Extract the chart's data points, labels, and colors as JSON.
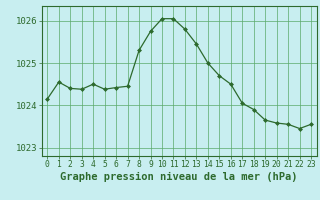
{
  "x": [
    0,
    1,
    2,
    3,
    4,
    5,
    6,
    7,
    8,
    9,
    10,
    11,
    12,
    13,
    14,
    15,
    16,
    17,
    18,
    19,
    20,
    21,
    22,
    23
  ],
  "y": [
    1024.15,
    1024.55,
    1024.4,
    1024.38,
    1024.5,
    1024.38,
    1024.42,
    1024.45,
    1025.3,
    1025.75,
    1026.05,
    1026.05,
    1025.8,
    1025.45,
    1025.0,
    1024.7,
    1024.5,
    1024.05,
    1023.9,
    1023.65,
    1023.58,
    1023.55,
    1023.45,
    1023.55
  ],
  "line_color": "#2d6a2d",
  "marker": "D",
  "marker_size": 2.0,
  "bg_color": "#c8eef0",
  "grid_color": "#5aaa6a",
  "title": "Graphe pression niveau de la mer (hPa)",
  "ylim": [
    1022.8,
    1026.35
  ],
  "xlim": [
    -0.5,
    23.5
  ],
  "yticks": [
    1023,
    1024,
    1025,
    1026
  ],
  "xticks": [
    0,
    1,
    2,
    3,
    4,
    5,
    6,
    7,
    8,
    9,
    10,
    11,
    12,
    13,
    14,
    15,
    16,
    17,
    18,
    19,
    20,
    21,
    22,
    23
  ],
  "title_fontsize": 7.5,
  "tick_fontsize": 5.8,
  "ylabel_fontsize": 6.5
}
